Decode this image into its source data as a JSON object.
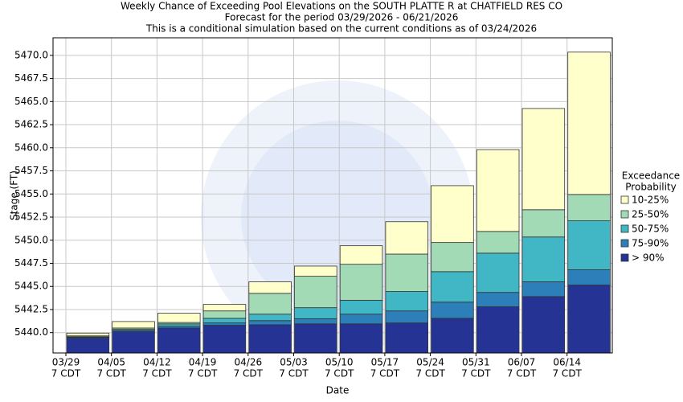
{
  "chart_data": {
    "type": "bar",
    "title": [
      "Weekly Chance of Exceeding Pool Elevations on the SOUTH PLATTE R at CHATFIELD RES CO",
      "Forecast for the period 03/29/2026 - 06/21/2026",
      "This is a conditional simulation based on the current conditions as of 03/24/2026"
    ],
    "x_label": "Date",
    "y_label": "Stage (FT)",
    "categories": [
      "03/29",
      "04/05",
      "04/12",
      "04/19",
      "04/26",
      "05/03",
      "05/10",
      "05/17",
      "05/24",
      "05/31",
      "06/07",
      "06/14"
    ],
    "tick_sublabel": "7 CDT",
    "legend_title": [
      "Exceedance",
      "Probability"
    ],
    "legend_position": "right",
    "grid": true,
    "ylim": [
      5437.8,
      5471.9
    ],
    "yticks": [
      {
        "value": 5440,
        "label": "5440.0"
      },
      5442.5,
      {
        "value": 5445,
        "label": "5445.0"
      },
      5447.5,
      {
        "value": 5450,
        "label": "5450.0"
      },
      5452.5,
      {
        "value": 5455,
        "label": "5455.0"
      },
      5457.5,
      {
        "value": 5460,
        "label": "5460.0"
      },
      5462.5,
      {
        "value": 5465,
        "label": "5465.0"
      },
      5467.5,
      {
        "value": 5470,
        "label": "5470.0"
      }
    ],
    "series": [
      {
        "name": "> 90%",
        "color": "#253494",
        "values": [
          5439.4,
          5440.1,
          5440.5,
          5440.8,
          5440.85,
          5440.95,
          5440.95,
          5441.05,
          5441.55,
          5442.8,
          5443.9,
          5445.15
        ]
      },
      {
        "name": "75-90%",
        "color": "#2c7fb8",
        "values": [
          5439.5,
          5440.25,
          5440.7,
          5441.05,
          5441.3,
          5441.5,
          5442.0,
          5442.35,
          5443.3,
          5444.35,
          5445.5,
          5446.8
        ]
      },
      {
        "name": "50-75%",
        "color": "#41b6c4",
        "values": [
          5439.55,
          5440.35,
          5440.95,
          5441.55,
          5442.0,
          5442.7,
          5443.5,
          5444.45,
          5446.6,
          5448.6,
          5450.35,
          5452.1
        ]
      },
      {
        "name": "25-50%",
        "color": "#a1dab4",
        "values": [
          5439.65,
          5440.5,
          5441.1,
          5442.35,
          5444.25,
          5446.1,
          5447.4,
          5448.5,
          5449.75,
          5450.95,
          5453.3,
          5454.95
        ]
      },
      {
        "name": "10-25%",
        "color": "#ffffcc",
        "values": [
          5439.95,
          5441.2,
          5442.1,
          5443.05,
          5445.5,
          5447.2,
          5449.4,
          5452.0,
          5455.9,
          5459.8,
          5464.25,
          5470.35
        ]
      }
    ]
  }
}
